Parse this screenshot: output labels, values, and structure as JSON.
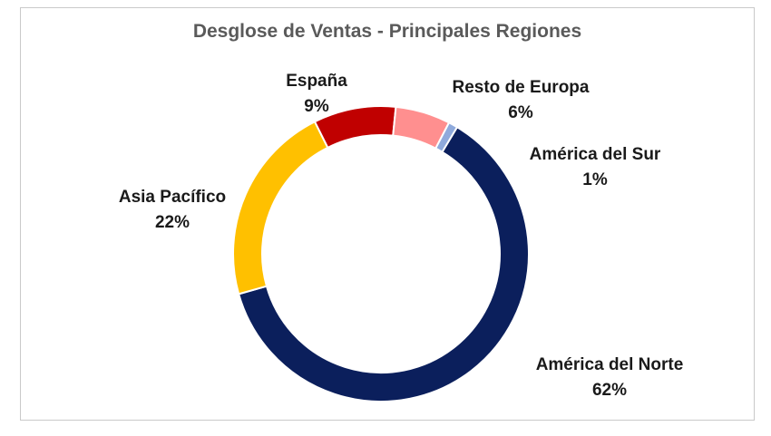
{
  "chart_data": {
    "type": "pie",
    "title": "Desglose de Ventas - Principales Regiones",
    "categories": [
      "América del Norte",
      "Asia Pacífico",
      "España",
      "Resto de Europa",
      "América del Sur"
    ],
    "values": [
      62,
      22,
      9,
      6,
      1
    ],
    "labels": [
      "62%",
      "22%",
      "9%",
      "6%",
      "1%"
    ],
    "colors": [
      "#0b1f5c",
      "#ffc000",
      "#c00000",
      "#ff8f8f",
      "#8faadc"
    ],
    "legend": "none"
  }
}
